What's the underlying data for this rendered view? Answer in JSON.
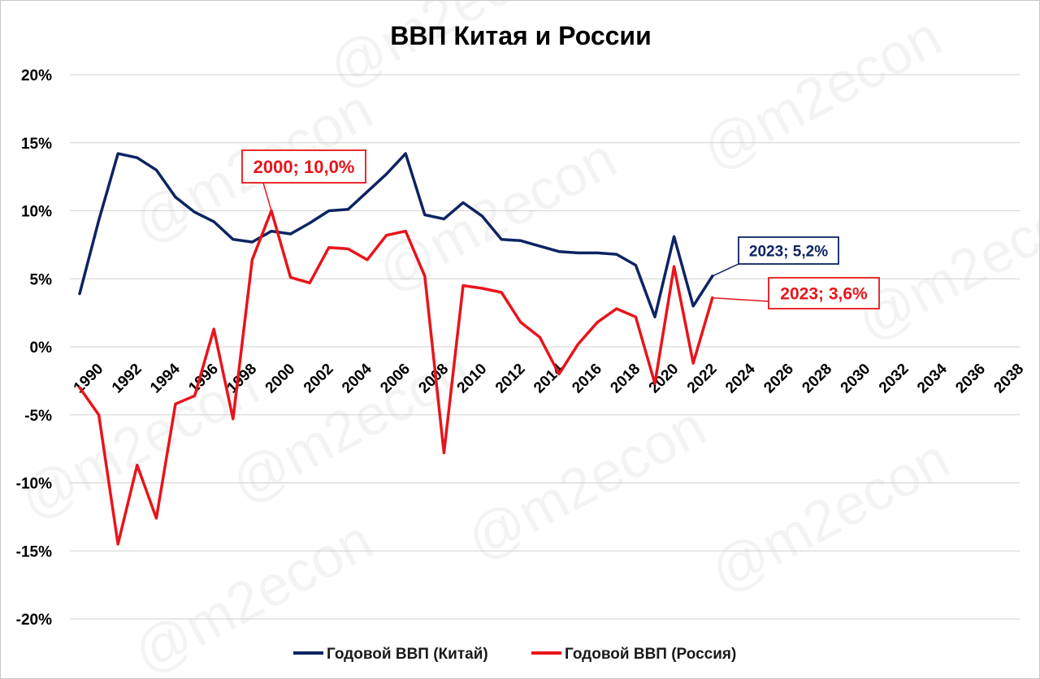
{
  "chart_data": {
    "type": "line",
    "title": "ВВП Китая и России",
    "watermark": "@m2econ",
    "ylim": [
      -20,
      20
    ],
    "yticks": [
      -20,
      -15,
      -10,
      -5,
      0,
      5,
      10,
      15,
      20
    ],
    "ytick_labels": [
      "-20%",
      "-15%",
      "-10%",
      "-5%",
      "0%",
      "5%",
      "10%",
      "15%",
      "20%"
    ],
    "xlim": [
      1990,
      2038
    ],
    "xticks": [
      "1990",
      "1992",
      "1994",
      "1996",
      "1998",
      "2000",
      "2002",
      "2004",
      "2006",
      "2008",
      "2010",
      "2012",
      "2014",
      "2016",
      "2018",
      "2020",
      "2022",
      "2024",
      "2026",
      "2028",
      "2030",
      "2032",
      "2034",
      "2036",
      "2038"
    ],
    "grid": true,
    "legend_position": "bottom",
    "series": [
      {
        "name": "Годовой ВВП (Китай)",
        "color": "#0d2463",
        "x": [
          1990,
          1991,
          1992,
          1993,
          1994,
          1995,
          1996,
          1997,
          1998,
          1999,
          2000,
          2001,
          2002,
          2003,
          2004,
          2005,
          2006,
          2007,
          2008,
          2009,
          2010,
          2011,
          2012,
          2013,
          2014,
          2015,
          2016,
          2017,
          2018,
          2019,
          2020,
          2021,
          2022,
          2023
        ],
        "values": [
          3.9,
          9.3,
          14.2,
          13.9,
          13.0,
          11.0,
          9.9,
          9.2,
          7.9,
          7.7,
          8.5,
          8.3,
          9.1,
          10.0,
          10.1,
          11.4,
          12.7,
          14.2,
          9.7,
          9.4,
          10.6,
          9.6,
          7.9,
          7.8,
          7.4,
          7.0,
          6.9,
          6.9,
          6.8,
          6.0,
          2.2,
          8.1,
          3.0,
          5.2
        ]
      },
      {
        "name": "Годовой ВВП (Россия)",
        "color": "#e8141b",
        "x": [
          1990,
          1991,
          1992,
          1993,
          1994,
          1995,
          1996,
          1997,
          1998,
          1999,
          2000,
          2001,
          2002,
          2003,
          2004,
          2005,
          2006,
          2007,
          2008,
          2009,
          2010,
          2011,
          2012,
          2013,
          2014,
          2015,
          2016,
          2017,
          2018,
          2019,
          2020,
          2021,
          2022,
          2023
        ],
        "values": [
          -3.0,
          -5.0,
          -14.5,
          -8.7,
          -12.6,
          -4.2,
          -3.6,
          1.3,
          -5.3,
          6.4,
          10.0,
          5.1,
          4.7,
          7.3,
          7.2,
          6.4,
          8.2,
          8.5,
          5.2,
          -7.8,
          4.5,
          4.3,
          4.0,
          1.8,
          0.7,
          -2.0,
          0.2,
          1.8,
          2.8,
          2.2,
          -2.7,
          5.9,
          -1.2,
          3.6
        ]
      }
    ],
    "annotations": [
      {
        "label": "2000; 10,0%",
        "x": 2000,
        "y": 10.0,
        "color": "#e8141b"
      },
      {
        "label": "2023; 5,2%",
        "x": 2023,
        "y": 5.2,
        "color": "#0d2463"
      },
      {
        "label": "2023; 3,6%",
        "x": 2023,
        "y": 3.6,
        "color": "#e8141b"
      }
    ]
  }
}
